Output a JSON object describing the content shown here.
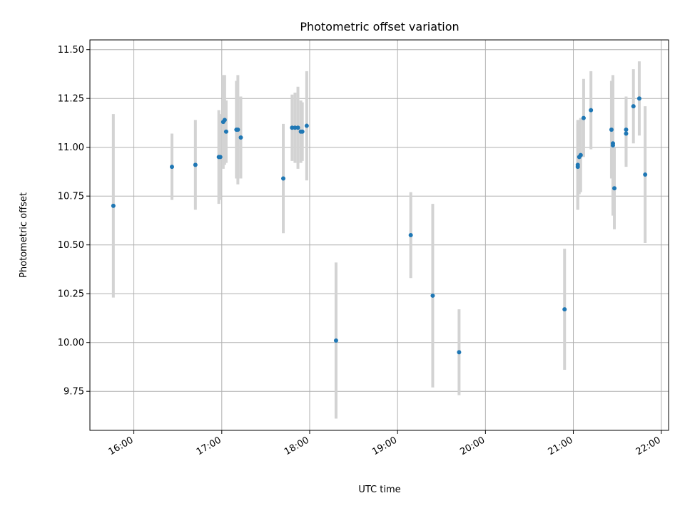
{
  "chart_data": {
    "type": "scatter",
    "title": "Photometric offset variation",
    "xlabel": "UTC time",
    "ylabel": "Photometric offset",
    "xlim": [
      "15:30",
      "22:05"
    ],
    "ylim": [
      9.55,
      11.55
    ],
    "x_ticks": [
      "16:00",
      "17:00",
      "18:00",
      "19:00",
      "20:00",
      "21:00",
      "22:00"
    ],
    "y_ticks": [
      "9.75",
      "10.00",
      "10.25",
      "10.50",
      "10.75",
      "11.00",
      "11.25",
      "11.50"
    ],
    "grid": true,
    "colors": {
      "point": "#1f77b4",
      "errorbar": "#d3d3d3",
      "grid": "#b0b0b0"
    },
    "series": [
      {
        "error_bars": true,
        "points": [
          {
            "x": "15:46",
            "y": 10.7,
            "err": 0.47
          },
          {
            "x": "16:26",
            "y": 10.9,
            "err": 0.17
          },
          {
            "x": "16:42",
            "y": 10.91,
            "err": 0.23
          },
          {
            "x": "16:58",
            "y": 10.95,
            "err": 0.24
          },
          {
            "x": "16:59",
            "y": 10.95,
            "err": 0.22
          },
          {
            "x": "17:01",
            "y": 11.13,
            "err": 0.24
          },
          {
            "x": "17:02",
            "y": 11.14,
            "err": 0.23
          },
          {
            "x": "17:03",
            "y": 11.08,
            "err": 0.16
          },
          {
            "x": "17:10",
            "y": 11.09,
            "err": 0.25
          },
          {
            "x": "17:11",
            "y": 11.09,
            "err": 0.28
          },
          {
            "x": "17:13",
            "y": 11.05,
            "err": 0.21
          },
          {
            "x": "17:42",
            "y": 10.84,
            "err": 0.28
          },
          {
            "x": "17:48",
            "y": 11.1,
            "err": 0.17
          },
          {
            "x": "17:50",
            "y": 11.1,
            "err": 0.18
          },
          {
            "x": "17:52",
            "y": 11.1,
            "err": 0.21
          },
          {
            "x": "17:54",
            "y": 11.08,
            "err": 0.16
          },
          {
            "x": "17:55",
            "y": 11.08,
            "err": 0.15
          },
          {
            "x": "17:58",
            "y": 11.11,
            "err": 0.28
          },
          {
            "x": "18:18",
            "y": 10.01,
            "err": 0.4
          },
          {
            "x": "19:09",
            "y": 10.55,
            "err": 0.22
          },
          {
            "x": "19:24",
            "y": 10.24,
            "err": 0.47
          },
          {
            "x": "19:42",
            "y": 9.95,
            "err": 0.22
          },
          {
            "x": "20:54",
            "y": 10.17,
            "err": 0.31
          },
          {
            "x": "21:03",
            "y": 10.91,
            "err": 0.23
          },
          {
            "x": "21:03",
            "y": 10.9,
            "err": 0.22
          },
          {
            "x": "21:04",
            "y": 10.95,
            "err": 0.19
          },
          {
            "x": "21:05",
            "y": 10.96,
            "err": 0.19
          },
          {
            "x": "21:07",
            "y": 11.15,
            "err": 0.2
          },
          {
            "x": "21:12",
            "y": 11.19,
            "err": 0.2
          },
          {
            "x": "21:26",
            "y": 11.09,
            "err": 0.25
          },
          {
            "x": "21:27",
            "y": 11.02,
            "err": 0.34
          },
          {
            "x": "21:27",
            "y": 11.01,
            "err": 0.36
          },
          {
            "x": "21:28",
            "y": 10.79,
            "err": 0.21
          },
          {
            "x": "21:36",
            "y": 11.07,
            "err": 0.17
          },
          {
            "x": "21:36",
            "y": 11.09,
            "err": 0.17
          },
          {
            "x": "21:41",
            "y": 11.21,
            "err": 0.19
          },
          {
            "x": "21:45",
            "y": 11.25,
            "err": 0.19
          },
          {
            "x": "21:49",
            "y": 10.86,
            "err": 0.35
          }
        ]
      }
    ]
  }
}
